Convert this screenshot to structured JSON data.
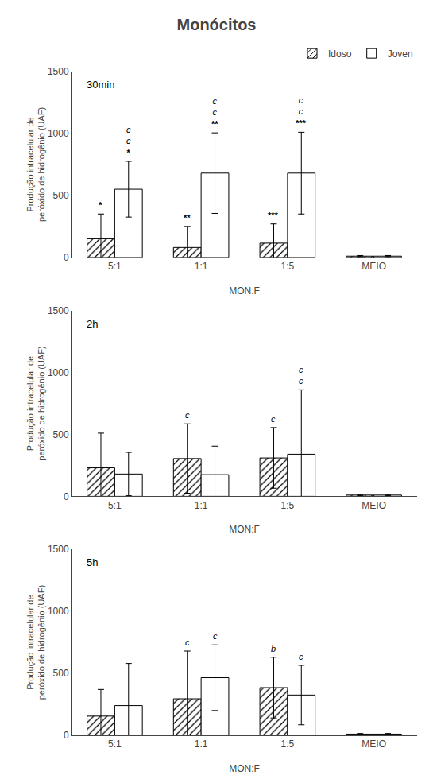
{
  "chart_data": [
    {
      "type": "bar",
      "title": "Monócitos",
      "legend": "upper right",
      "grid": false,
      "annotations": [
        "30min"
      ],
      "categories": [
        "5:1",
        "1:1",
        "1:5",
        "MEIO"
      ],
      "series": [
        {
          "name": "Idoso",
          "color": "#808080",
          "marker": "hatch",
          "values": [
            150,
            80,
            115,
            10
          ],
          "error": [
            200,
            170,
            155,
            5
          ],
          "annotations": [
            "*",
            "**",
            "***",
            null
          ]
        },
        {
          "name": "Joven",
          "color": "#ffffff",
          "values": [
            550,
            680,
            680,
            10
          ],
          "error": [
            225,
            325,
            330,
            5
          ],
          "annotations": [
            "c\nc\n*",
            "c\nc\n**",
            "c\nc\n***",
            null
          ]
        }
      ],
      "xlabel": "MON:F",
      "ylabel": "Produção intracelular de\nperóxido de hidrogênio (UAF)",
      "ylim": [
        0,
        1500
      ],
      "yticks": [
        0,
        500,
        1000,
        1500
      ]
    },
    {
      "type": "bar",
      "grid": false,
      "annotations": [
        "2h"
      ],
      "categories": [
        "5:1",
        "1:1",
        "1:5",
        "MEIO"
      ],
      "series": [
        {
          "name": "Idoso",
          "color": "#808080",
          "marker": "hatch",
          "values": [
            230,
            305,
            310,
            10
          ],
          "error": [
            280,
            280,
            245,
            5
          ],
          "annotations": [
            null,
            "c",
            "c",
            null
          ]
        },
        {
          "name": "Joven",
          "color": "#ffffff",
          "values": [
            180,
            175,
            340,
            10
          ],
          "error": [
            175,
            230,
            520,
            5
          ],
          "annotations": [
            null,
            null,
            "c\nc",
            null
          ]
        }
      ],
      "xlabel": "MON:F",
      "ylabel": "Produção intracelular de\nperóxido de hidrogênio (UAF)",
      "ylim": [
        0,
        1500
      ],
      "yticks": [
        0,
        500,
        1000,
        1500
      ]
    },
    {
      "type": "bar",
      "grid": false,
      "annotations": [
        "5h"
      ],
      "categories": [
        "5:1",
        "1:1",
        "1:5",
        "MEIO"
      ],
      "series": [
        {
          "name": "Idoso",
          "color": "#808080",
          "marker": "hatch",
          "values": [
            155,
            295,
            385,
            10
          ],
          "error": [
            215,
            385,
            245,
            5
          ],
          "annotations": [
            null,
            "c",
            "b",
            null
          ]
        },
        {
          "name": "Joven",
          "color": "#ffffff",
          "values": [
            240,
            465,
            325,
            10
          ],
          "error": [
            340,
            265,
            240,
            5
          ],
          "annotations": [
            null,
            "c",
            "c",
            null
          ]
        }
      ],
      "xlabel": "MON:F",
      "ylabel": "Produção intracelular de\nperóxido de hidrogênio (UAF)",
      "ylim": [
        0,
        1500
      ],
      "yticks": [
        0,
        500,
        1000,
        1500
      ]
    }
  ]
}
